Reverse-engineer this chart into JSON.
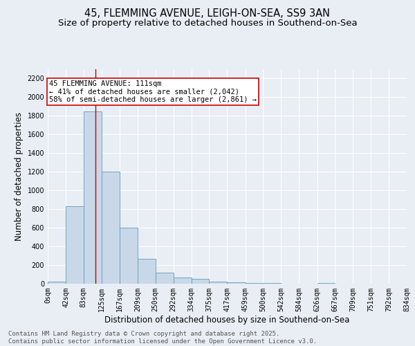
{
  "title_line1": "45, FLEMMING AVENUE, LEIGH-ON-SEA, SS9 3AN",
  "title_line2": "Size of property relative to detached houses in Southend-on-Sea",
  "xlabel": "Distribution of detached houses by size in Southend-on-Sea",
  "ylabel": "Number of detached properties",
  "bar_color": "#c8d8e8",
  "bar_edge_color": "#6699bb",
  "background_color": "#e8eef4",
  "grid_color": "#ffffff",
  "bin_edges": [
    0,
    42,
    83,
    125,
    167,
    209,
    250,
    292,
    334,
    375,
    417,
    459,
    500,
    542,
    584,
    626,
    667,
    709,
    751,
    792,
    834
  ],
  "bar_heights": [
    20,
    830,
    1850,
    1200,
    600,
    270,
    120,
    70,
    50,
    20,
    15,
    10,
    5,
    3,
    2,
    5,
    0,
    0,
    0,
    0
  ],
  "property_size": 111,
  "vline_color": "#cc0000",
  "annotation_line1": "45 FLEMMING AVENUE: 111sqm",
  "annotation_line2": "← 41% of detached houses are smaller (2,042)",
  "annotation_line3": "58% of semi-detached houses are larger (2,861) →",
  "annotation_box_color": "#ffffff",
  "annotation_box_edge_color": "#cc0000",
  "ylim": [
    0,
    2300
  ],
  "yticks": [
    0,
    200,
    400,
    600,
    800,
    1000,
    1200,
    1400,
    1600,
    1800,
    2000,
    2200
  ],
  "tick_labels": [
    "0sqm",
    "42sqm",
    "83sqm",
    "125sqm",
    "167sqm",
    "209sqm",
    "250sqm",
    "292sqm",
    "334sqm",
    "375sqm",
    "417sqm",
    "459sqm",
    "500sqm",
    "542sqm",
    "584sqm",
    "626sqm",
    "667sqm",
    "709sqm",
    "751sqm",
    "792sqm",
    "834sqm"
  ],
  "footer_text": "Contains HM Land Registry data © Crown copyright and database right 2025.\nContains public sector information licensed under the Open Government Licence v3.0.",
  "title_fontsize": 10.5,
  "subtitle_fontsize": 9.5,
  "axis_label_fontsize": 8.5,
  "tick_fontsize": 7,
  "annotation_fontsize": 7.5,
  "footer_fontsize": 6.5
}
